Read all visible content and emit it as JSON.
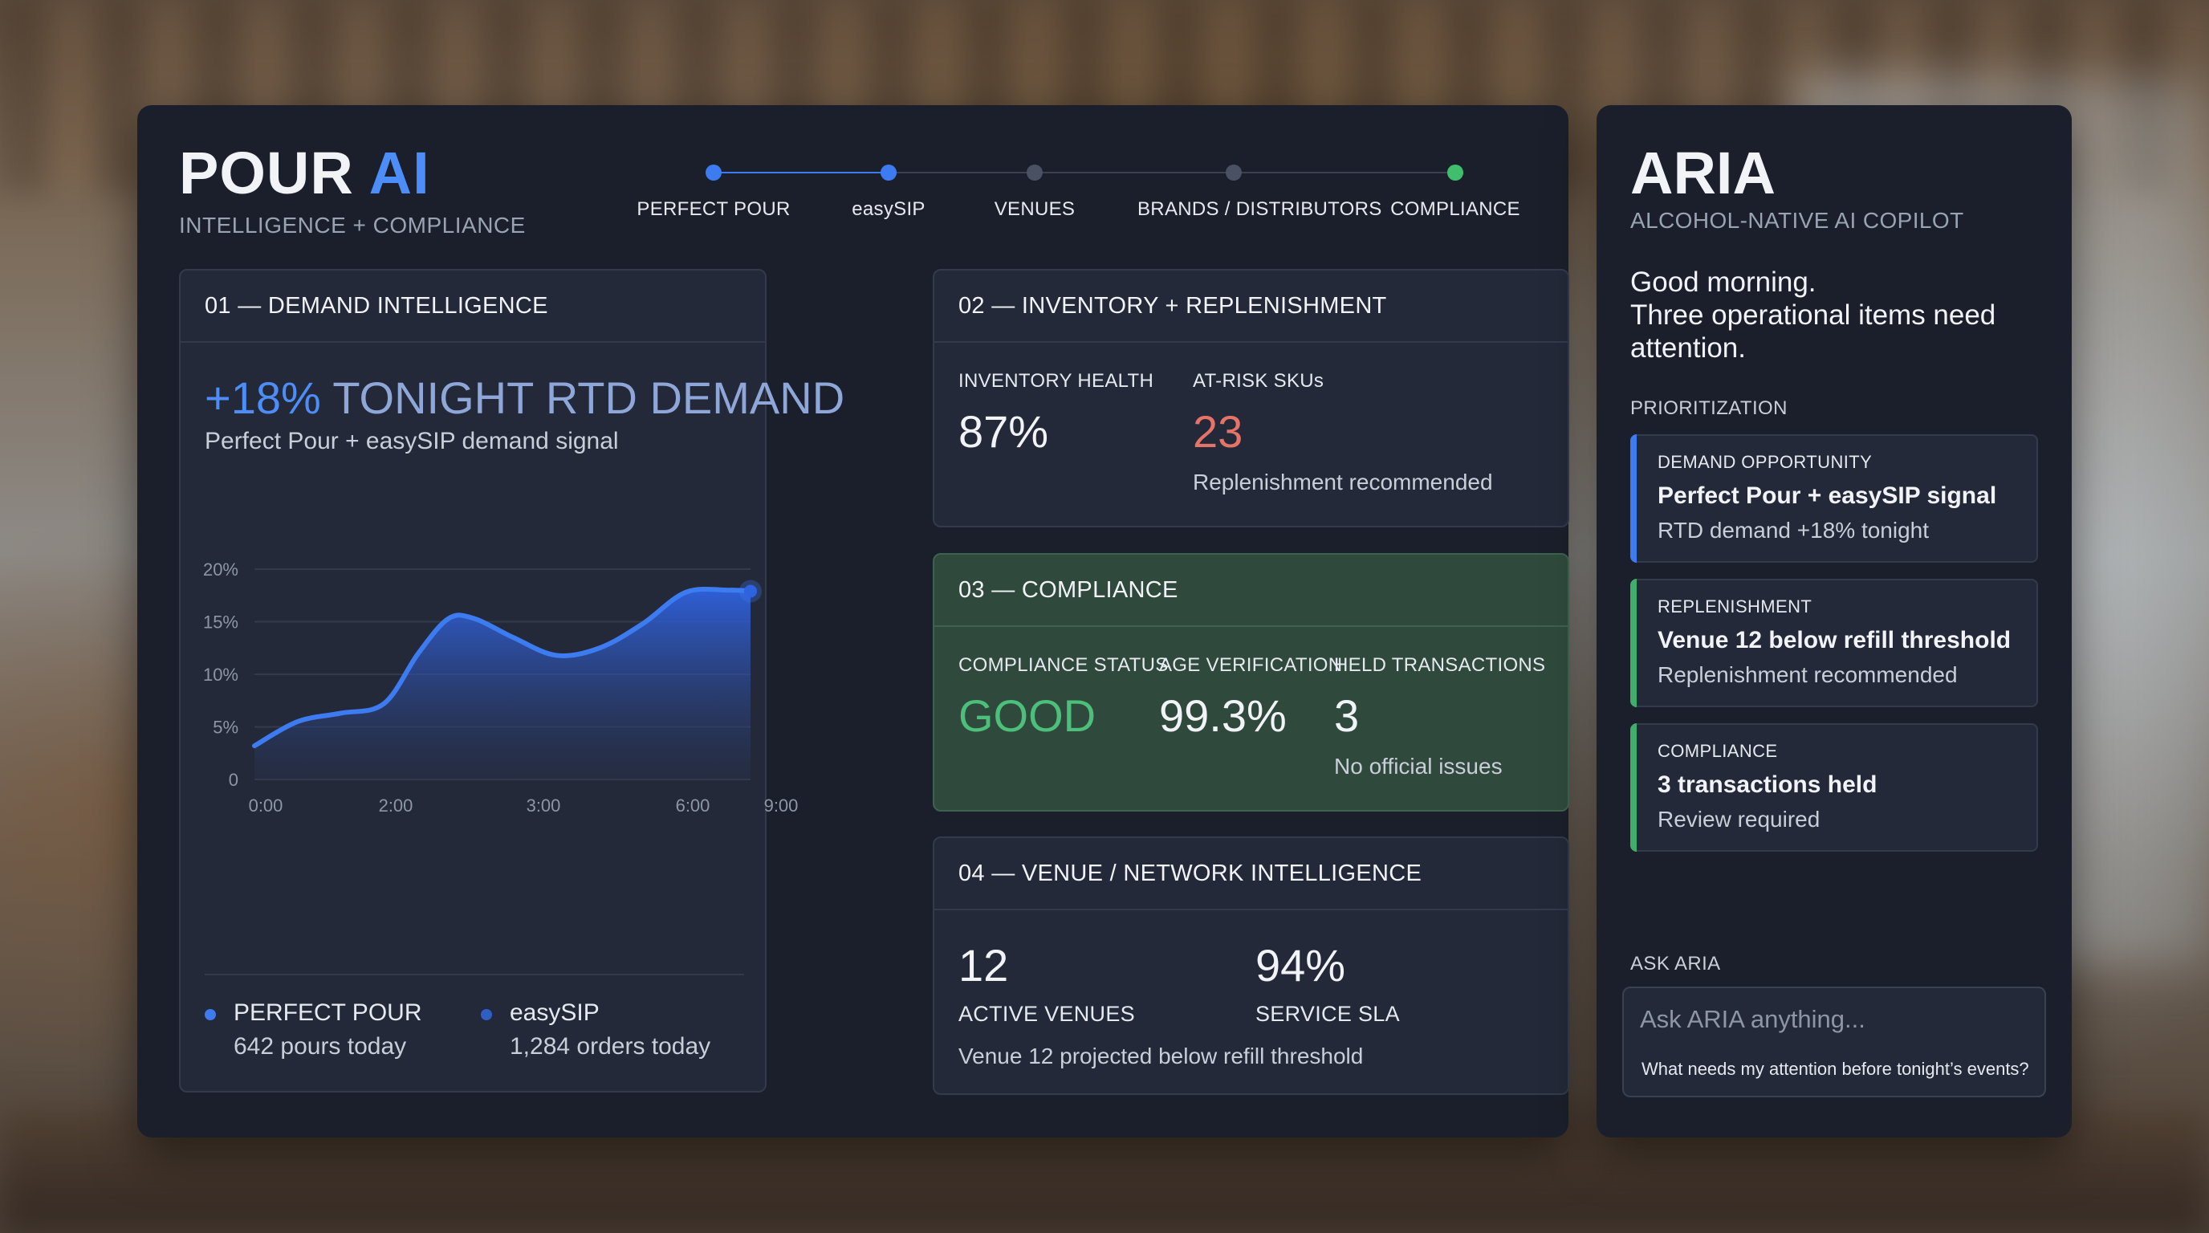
{
  "brand": {
    "title_main": "POUR",
    "title_accent": "AI",
    "subtitle": "INTELLIGENCE + COMPLIANCE"
  },
  "stepper": [
    {
      "label": "PERFECT POUR",
      "state": "blue"
    },
    {
      "label": "easySIP",
      "state": "blue"
    },
    {
      "label": "VENUES",
      "state": "gray"
    },
    {
      "label": "BRANDS / DISTRIBUTORS",
      "state": "gray"
    },
    {
      "label": "COMPLIANCE",
      "state": "green"
    }
  ],
  "demand": {
    "header": "01 — DEMAND INTELLIGENCE",
    "headline_pct": "+18%",
    "headline_text": "TONIGHT RTD DEMAND",
    "subtitle": "Perfect Pour + easySIP demand signal",
    "legend": [
      {
        "name": "PERFECT POUR",
        "value": "642 pours today",
        "color": "#3d7cf0"
      },
      {
        "name": "easySIP",
        "value": "1,284 orders today",
        "color": "#2f5fc4"
      }
    ]
  },
  "chart_data": {
    "type": "area",
    "x_tick_labels": [
      "0:00",
      "2:00",
      "3:00",
      "6:00",
      "9:00"
    ],
    "y_tick_labels": [
      "0",
      "5%",
      "10%",
      "15%",
      "20%"
    ],
    "ylim": [
      0,
      20
    ],
    "grid": true,
    "series": [
      {
        "values": [
          [
            0,
            3.2
          ],
          [
            0.5,
            5.5
          ],
          [
            1.0,
            6.3
          ],
          [
            1.5,
            7.2
          ],
          [
            1.9,
            12.0
          ],
          [
            2.25,
            15.3
          ],
          [
            2.55,
            15.3
          ],
          [
            3.0,
            13.5
          ],
          [
            3.5,
            11.8
          ],
          [
            4.0,
            12.5
          ],
          [
            4.5,
            14.8
          ],
          [
            5.0,
            17.8
          ],
          [
            5.5,
            18.0
          ],
          [
            5.75,
            17.9
          ]
        ],
        "color": "#3d7cf0"
      }
    ],
    "xlim": [
      0,
      5.75
    ]
  },
  "inventory": {
    "header": "02 — INVENTORY + REPLENISHMENT",
    "health_label": "INVENTORY HEALTH",
    "health_value": "87%",
    "risk_label": "AT-RISK SKUs",
    "risk_value": "23",
    "risk_color": "#e57368",
    "note": "Replenishment recommended"
  },
  "compliance": {
    "header": "03 — COMPLIANCE",
    "status_label": "COMPLIANCE STATUS",
    "status_value": "GOOD",
    "status_color": "#4cc07a",
    "age_label": "AGE VERIFICATION",
    "age_value": "99.3%",
    "held_label": "HELD TRANSACTIONS",
    "held_value": "3",
    "note": "No official issues"
  },
  "venue": {
    "header": "04 — VENUE / NETWORK INTELLIGENCE",
    "active_value": "12",
    "active_label": "ACTIVE VENUES",
    "sla_value": "94%",
    "sla_label": "SERVICE SLA",
    "note": "Venue 12 projected below refill threshold"
  },
  "aria": {
    "title": "ARIA",
    "subtitle": "ALCOHOL-NATIVE AI COPILOT",
    "greeting_line1": "Good morning.",
    "greeting_line2": "Three operational items need attention.",
    "prioritization_label": "PRIORITIZATION",
    "items": [
      {
        "kicker": "DEMAND OPPORTUNITY",
        "title": "Perfect Pour + easySIP signal",
        "note": "RTD demand +18% tonight",
        "color": "#3d7cf0"
      },
      {
        "kicker": "REPLENISHMENT",
        "title": "Venue 12 below refill threshold",
        "note": "Replenishment recommended",
        "color": "#3fae6b"
      },
      {
        "kicker": "COMPLIANCE",
        "title": "3 transactions held",
        "note": "Review required",
        "color": "#3fae6b"
      }
    ],
    "ask_label": "ASK ARIA",
    "ask_placeholder": "Ask ARIA anything...",
    "ask_suggestion": "What needs my attention before tonight’s events?"
  }
}
